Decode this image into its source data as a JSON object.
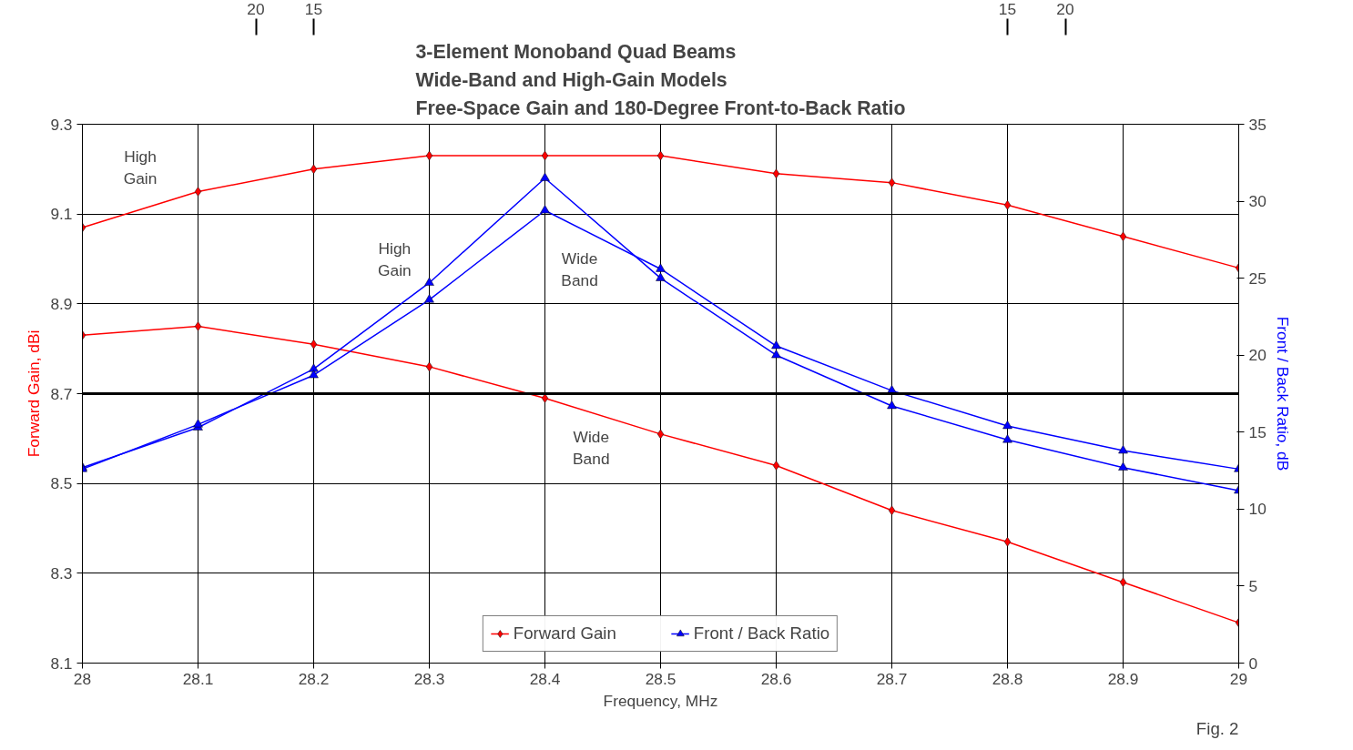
{
  "chart_data": {
    "type": "line",
    "title": "3-Element Monoband Quad Beams\nWide-Band and High-Gain Models\nFree-Space Gain and 180-Degree Front-to-Back Ratio",
    "xlabel": "Frequency, MHz",
    "ylabel": "Forward Gain, dBi",
    "y2label": "Front / Back Ratio, dB",
    "x": [
      28,
      28.1,
      28.2,
      28.3,
      28.4,
      28.5,
      28.6,
      28.7,
      28.8,
      28.9,
      29
    ],
    "series": [
      {
        "name": "Forward Gain",
        "color": "#ff0000",
        "marker": "diamond",
        "values": [
          9.07,
          9.15,
          9.2,
          9.23,
          9.23,
          9.23,
          9.19,
          9.17,
          9.12,
          9.05,
          8.98
        ]
      },
      {
        "color": "#ff0000",
        "marker": "diamond",
        "values": [
          8.83,
          8.85,
          8.81,
          8.76,
          8.69,
          8.61,
          8.54,
          8.44,
          8.37,
          8.28,
          8.19
        ]
      },
      {
        "name": "Front / Back Ratio",
        "color": "#0000ff",
        "marker": "triangle",
        "axis": "y2",
        "values": [
          12.7,
          15.3,
          19.1,
          24.7,
          31.5,
          25.0,
          20.0,
          16.7,
          14.5,
          12.7,
          11.2
        ]
      },
      {
        "color": "#0000ff",
        "marker": "triangle",
        "axis": "y2",
        "values": [
          12.6,
          15.5,
          18.7,
          23.6,
          29.4,
          25.6,
          20.6,
          17.7,
          15.4,
          13.8,
          12.6
        ]
      }
    ],
    "xlim": [
      28,
      29
    ],
    "xticks": [
      28,
      28.1,
      28.2,
      28.3,
      28.4,
      28.5,
      28.6,
      28.7,
      28.8,
      28.9,
      29
    ],
    "ylim": [
      8.1,
      9.3
    ],
    "yticks": [
      8.1,
      8.3,
      8.5,
      8.7,
      8.9,
      9.1,
      9.3
    ],
    "y2lim": [
      0,
      35
    ],
    "y2ticks": [
      0,
      5,
      10,
      15,
      20,
      25,
      30,
      35
    ],
    "ref_lines": [
      {
        "axis": "y",
        "value": 8.7,
        "color": "#000000"
      }
    ],
    "annotations": [
      "20",
      "15",
      "15",
      "20",
      "High\nGain",
      "High\nGain",
      "Wide\nBand",
      "Wide\nBand",
      "Fig. 2"
    ],
    "grid": true,
    "legend": "bottom",
    "line_style": "solid"
  }
}
